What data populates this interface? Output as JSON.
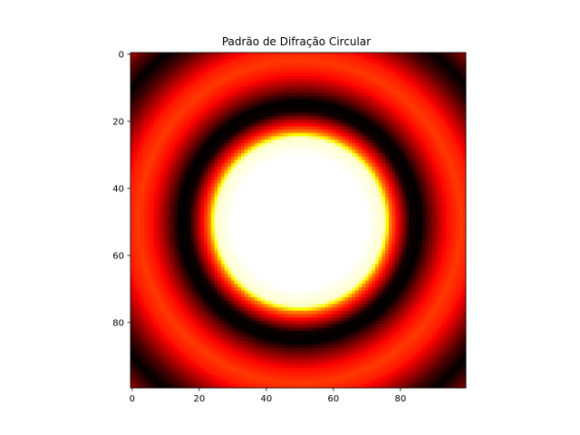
{
  "chart_data": {
    "type": "heatmap",
    "title": "Padrão de Difração Circular",
    "xlabel": "",
    "ylabel": "",
    "colormap": "hot",
    "colormap_stops": [
      "#000000",
      "#ff0000",
      "#ffff00",
      "#ffffff"
    ],
    "grid": false,
    "legend": "none",
    "shape": [
      100,
      100
    ],
    "center": [
      50,
      50
    ],
    "radial_intensity_profile": {
      "radius": [
        0,
        20,
        25,
        27,
        30,
        33,
        36,
        40,
        44,
        48,
        52,
        56,
        60,
        64,
        68,
        70
      ],
      "value": [
        1.0,
        1.0,
        0.95,
        0.55,
        0.28,
        0.02,
        0.0,
        0.2,
        0.38,
        0.45,
        0.4,
        0.25,
        0.1,
        0.0,
        0.12,
        0.2
      ]
    },
    "xlim": [
      -0.5,
      99.5
    ],
    "ylim": [
      99.5,
      -0.5
    ],
    "xticks": [
      0,
      20,
      40,
      60,
      80
    ],
    "yticks": [
      0,
      20,
      40,
      60,
      80
    ]
  }
}
